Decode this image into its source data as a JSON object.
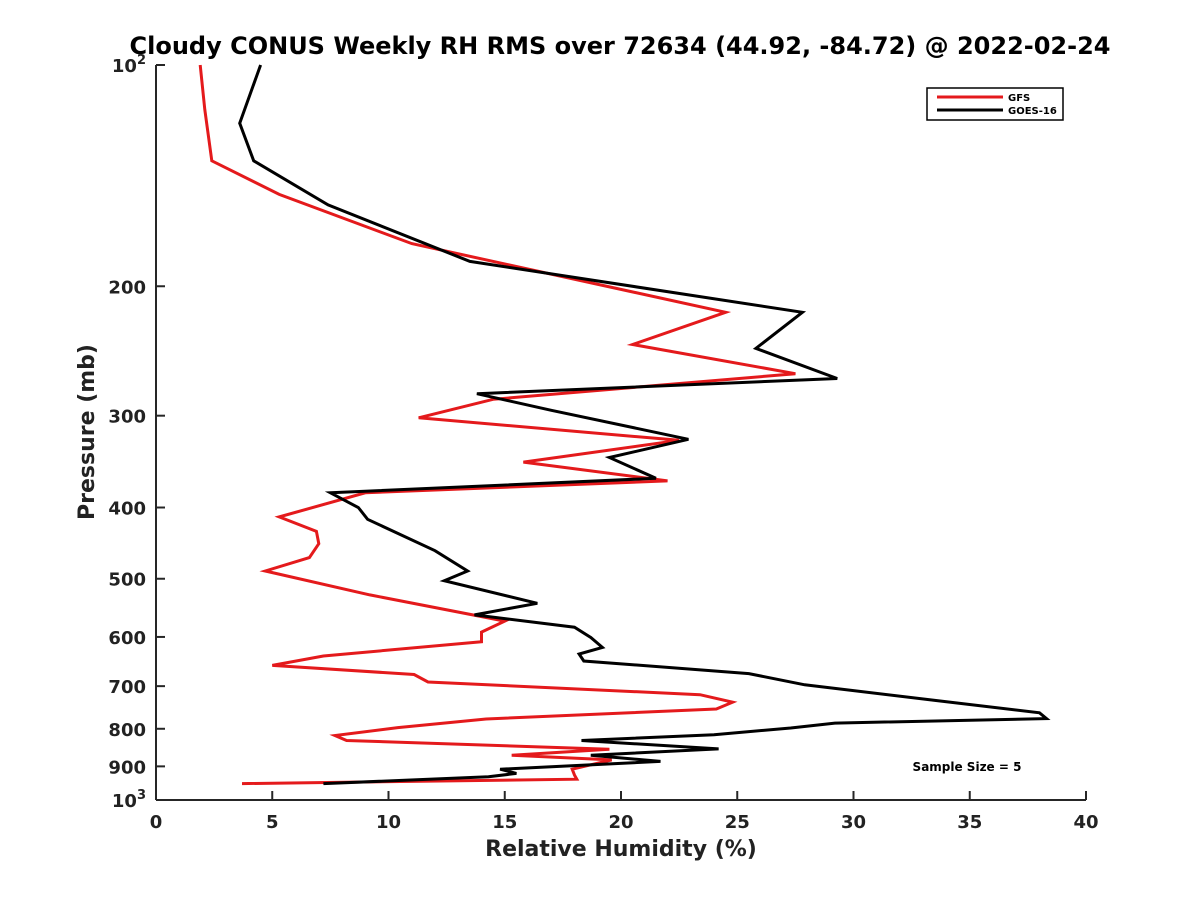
{
  "chart_data": {
    "type": "line",
    "title": "Cloudy CONUS Weekly RH RMS over 72634 (44.92, -84.72) @ 2022-02-24",
    "xlabel": "Relative Humidity (%)",
    "ylabel": "Pressure (mb)",
    "xlim": [
      0,
      40
    ],
    "ylim": [
      100,
      1000
    ],
    "yscale": "log",
    "y_reversed": true,
    "x_ticks": [
      0,
      5,
      10,
      15,
      20,
      25,
      30,
      35,
      40
    ],
    "y_ticks": [
      {
        "value": 100,
        "label": "10",
        "sup": "2"
      },
      {
        "value": 200,
        "label": "200"
      },
      {
        "value": 300,
        "label": "300"
      },
      {
        "value": 400,
        "label": "400"
      },
      {
        "value": 500,
        "label": "500"
      },
      {
        "value": 600,
        "label": "600"
      },
      {
        "value": 700,
        "label": "700"
      },
      {
        "value": 800,
        "label": "800"
      },
      {
        "value": 900,
        "label": "900"
      },
      {
        "value": 1000,
        "label": "10",
        "sup": "3"
      }
    ],
    "grid": false,
    "legend_position": "top-right",
    "annotation": "Sample Size = 5",
    "series": [
      {
        "name": "GFS",
        "color": "#e41a1c",
        "points": [
          [
            1.9,
            100
          ],
          [
            2.1,
            115
          ],
          [
            2.4,
            135
          ],
          [
            5.3,
            150
          ],
          [
            11.0,
            175
          ],
          [
            24.5,
            217
          ],
          [
            20.5,
            240
          ],
          [
            27.5,
            263
          ],
          [
            14.5,
            285
          ],
          [
            11.3,
            302
          ],
          [
            22.5,
            324
          ],
          [
            15.8,
            347
          ],
          [
            22.0,
            368
          ],
          [
            9.0,
            382
          ],
          [
            5.3,
            412
          ],
          [
            6.9,
            431
          ],
          [
            7.0,
            448
          ],
          [
            6.6,
            468
          ],
          [
            4.7,
            488
          ],
          [
            9.2,
            526
          ],
          [
            15.0,
            571
          ],
          [
            14.0,
            591
          ],
          [
            14.0,
            609
          ],
          [
            7.2,
            637
          ],
          [
            5.0,
            656
          ],
          [
            11.1,
            675
          ],
          [
            11.7,
            691
          ],
          [
            23.4,
            719
          ],
          [
            24.8,
            736
          ],
          [
            24.1,
            752
          ],
          [
            14.2,
            776
          ],
          [
            10.4,
            797
          ],
          [
            7.7,
            817
          ],
          [
            8.2,
            830
          ],
          [
            19.5,
            853
          ],
          [
            15.3,
            869
          ],
          [
            19.6,
            882
          ],
          [
            17.9,
            908
          ],
          [
            18.0,
            925
          ],
          [
            18.1,
            937
          ],
          [
            3.7,
            950
          ]
        ]
      },
      {
        "name": "GOES-16",
        "color": "#000000",
        "points": [
          [
            4.5,
            100
          ],
          [
            3.6,
            120
          ],
          [
            4.2,
            135
          ],
          [
            7.4,
            155
          ],
          [
            13.5,
            185
          ],
          [
            27.8,
            217
          ],
          [
            25.8,
            243
          ],
          [
            29.3,
            267
          ],
          [
            13.8,
            280
          ],
          [
            17.0,
            295
          ],
          [
            22.9,
            323
          ],
          [
            19.5,
            342
          ],
          [
            21.5,
            365
          ],
          [
            7.5,
            382
          ],
          [
            8.7,
            400
          ],
          [
            9.1,
            415
          ],
          [
            12.0,
            458
          ],
          [
            13.4,
            488
          ],
          [
            12.4,
            503
          ],
          [
            16.4,
            540
          ],
          [
            13.7,
            560
          ],
          [
            18.0,
            582
          ],
          [
            18.7,
            601
          ],
          [
            19.2,
            620
          ],
          [
            18.2,
            633
          ],
          [
            18.4,
            647
          ],
          [
            25.5,
            673
          ],
          [
            27.9,
            697
          ],
          [
            33.5,
            732
          ],
          [
            38.0,
            761
          ],
          [
            38.3,
            775
          ],
          [
            29.2,
            786
          ],
          [
            27.3,
            798
          ],
          [
            24.0,
            815
          ],
          [
            18.3,
            830
          ],
          [
            24.2,
            852
          ],
          [
            18.7,
            869
          ],
          [
            21.7,
            886
          ],
          [
            14.8,
            908
          ],
          [
            15.5,
            920
          ],
          [
            14.3,
            930
          ],
          [
            7.2,
            950
          ]
        ]
      }
    ]
  }
}
